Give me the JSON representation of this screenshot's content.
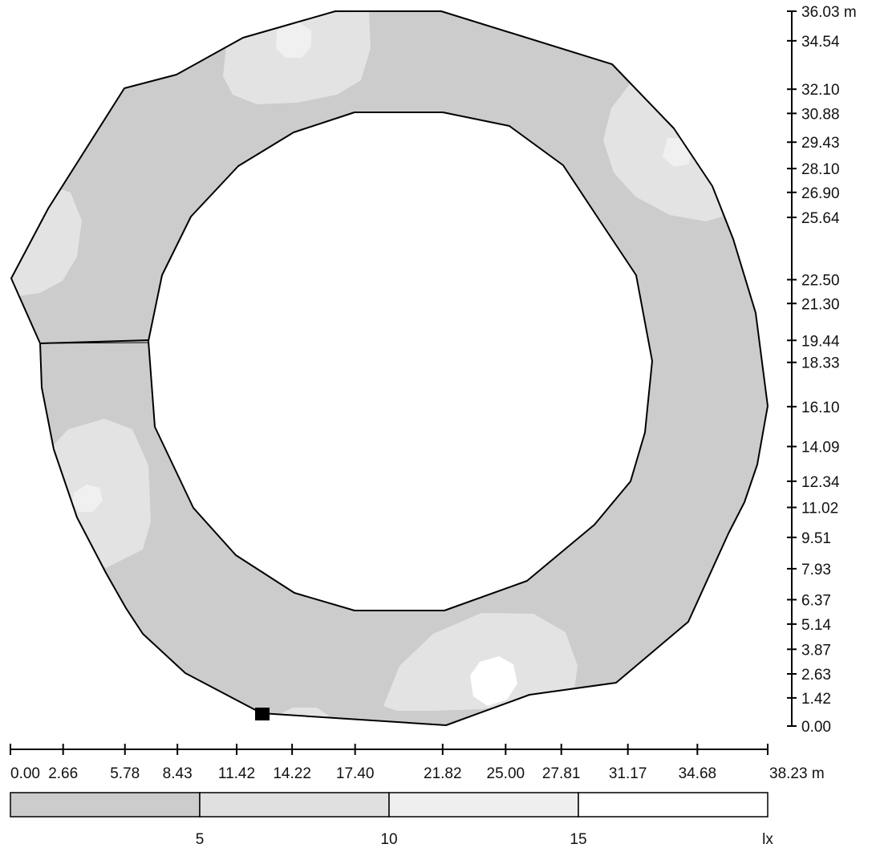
{
  "plan": {
    "x_axis": {
      "ticks": [
        "0.00",
        "2.66",
        "5.78",
        "8.43",
        "11.42",
        "14.22",
        "17.40",
        "21.82",
        "25.00",
        "27.81",
        "31.17",
        "34.68",
        "38.23 m"
      ],
      "values": [
        0.0,
        2.66,
        5.78,
        8.43,
        11.42,
        14.22,
        17.4,
        21.82,
        25.0,
        27.81,
        31.17,
        34.68,
        38.23
      ]
    },
    "y_axis": {
      "ticks": [
        "36.03 m",
        "34.54",
        "32.10",
        "30.88",
        "29.43",
        "28.10",
        "26.90",
        "25.64",
        "22.50",
        "21.30",
        "19.44",
        "18.33",
        "16.10",
        "14.09",
        "12.34",
        "11.02",
        "9.51",
        "7.93",
        "6.37",
        "5.14",
        "3.87",
        "2.63",
        "1.42",
        "0.00"
      ],
      "values": [
        36.03,
        34.54,
        32.1,
        30.88,
        29.43,
        28.1,
        26.9,
        25.64,
        22.5,
        21.3,
        19.44,
        18.33,
        16.1,
        14.09,
        12.34,
        11.02,
        9.51,
        7.93,
        6.37,
        5.14,
        3.87,
        2.63,
        1.42,
        0.0
      ]
    }
  },
  "legend": {
    "labels": [
      "5",
      "10",
      "15",
      "lx"
    ],
    "colors": [
      "#cccccc",
      "#e0e0e0",
      "#efefef",
      "#ffffff"
    ]
  },
  "colors": {
    "base_zone": "#cccccc",
    "zone_10": "#e3e3e3",
    "zone_15": "#f0f0f0",
    "zone_max": "#ffffff",
    "outline": "#000000"
  },
  "icons": {
    "marker": "square-marker-icon"
  }
}
